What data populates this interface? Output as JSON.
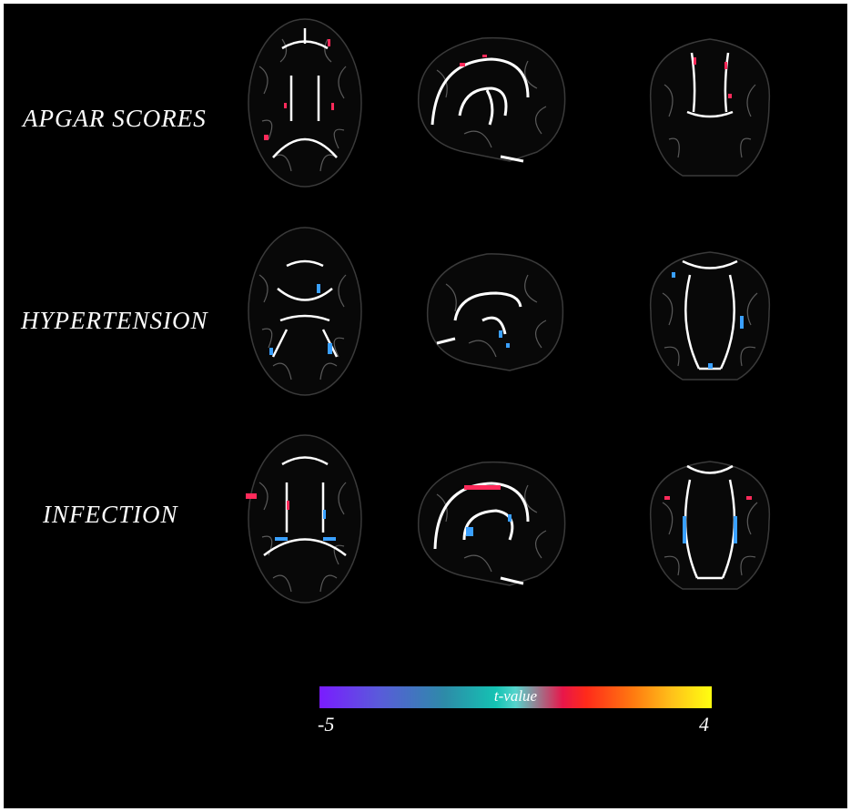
{
  "rows": [
    {
      "label": "APGAR SCORES"
    },
    {
      "label": "HYPERTENSION"
    },
    {
      "label": "INFECTION"
    }
  ],
  "views": [
    "axial",
    "sagittal",
    "coronal"
  ],
  "colorbar": {
    "title": "t-value",
    "min_label": "-5",
    "max_label": "4",
    "min": -5,
    "max": 4
  },
  "colors": {
    "background": "#000000",
    "skeleton": "#ffffff",
    "negative": "#3aa0ff",
    "positive": "#ff2a5a"
  }
}
